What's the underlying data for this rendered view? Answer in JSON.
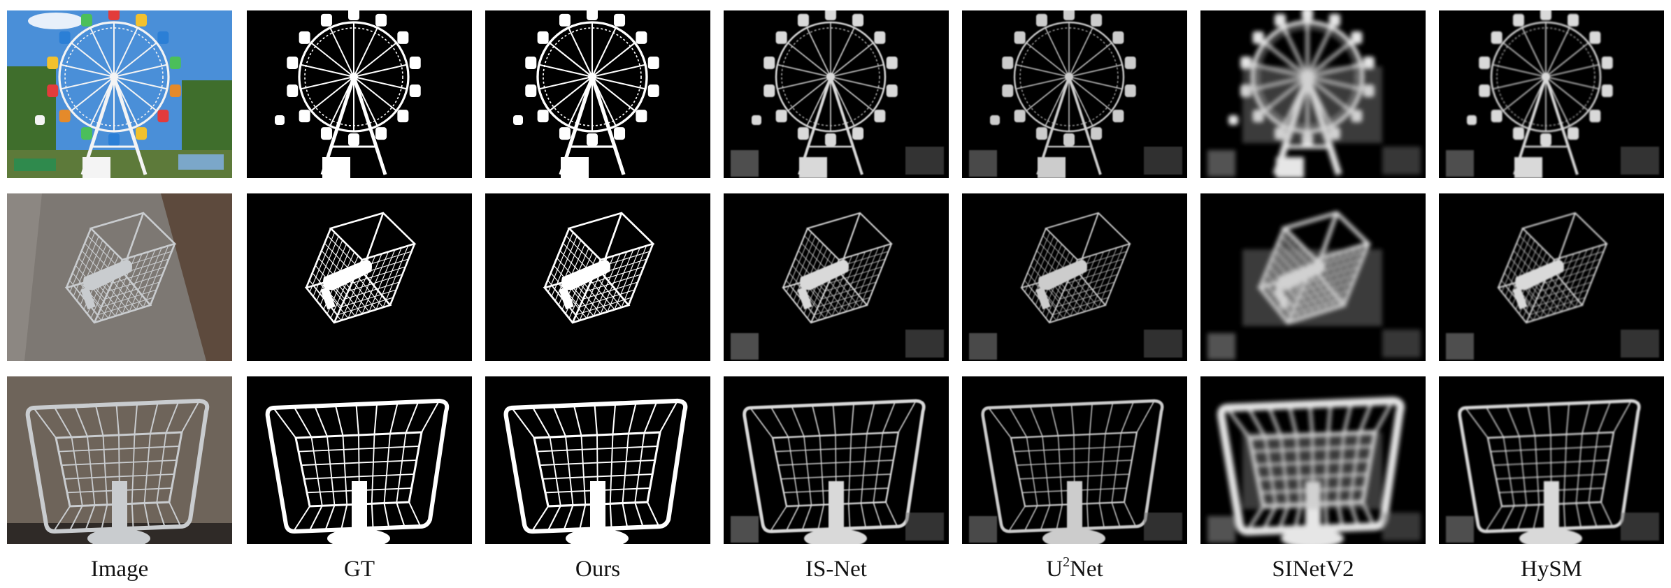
{
  "figure": {
    "columns": [
      {
        "label": "Image"
      },
      {
        "label": "GT"
      },
      {
        "label": "Ours"
      },
      {
        "label": "IS-Net"
      },
      {
        "label": "U",
        "sup": "2",
        "rest": "Net"
      },
      {
        "label": "SINetV2"
      },
      {
        "label": "HySM"
      }
    ],
    "rows": [
      {
        "subject": "ferris-wheel"
      },
      {
        "subject": "wire-cage-camera"
      },
      {
        "subject": "wire-basket"
      }
    ],
    "colors": {
      "mask_background": "#000000",
      "mask_foreground": "#ffffff",
      "sky": "#4a8fd8",
      "tree": "#3f6e2c",
      "wall": "#7d7873",
      "brick": "#5d4a3d",
      "ground": "#6e645a"
    }
  }
}
